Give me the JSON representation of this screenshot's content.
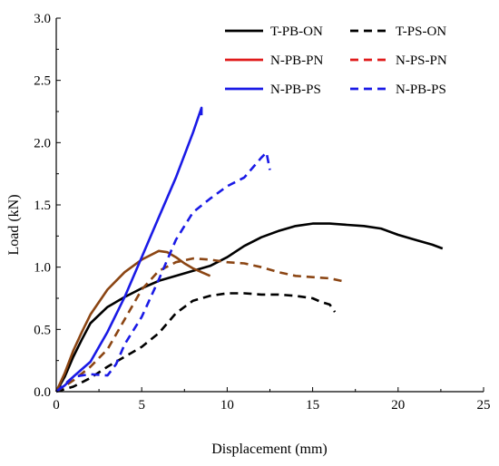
{
  "chart_data": {
    "type": "line",
    "title": "",
    "xlabel": "Displacement (mm)",
    "ylabel": "Load (kN)",
    "xlim": [
      0,
      25
    ],
    "ylim": [
      0,
      3.0
    ],
    "x_ticks": [
      "0",
      "5",
      "10",
      "15",
      "20",
      "25"
    ],
    "y_ticks": [
      "0.0",
      "0.5",
      "1.0",
      "1.5",
      "2.0",
      "2.5",
      "3.0"
    ],
    "grid": false,
    "legend_position": "top-right",
    "series": [
      {
        "name": "T-PB-ON",
        "color": "#000000",
        "dash": "solid",
        "points": [
          [
            0,
            0
          ],
          [
            0.5,
            0.12
          ],
          [
            1,
            0.28
          ],
          [
            1.5,
            0.42
          ],
          [
            2,
            0.55
          ],
          [
            3,
            0.68
          ],
          [
            4,
            0.76
          ],
          [
            5,
            0.83
          ],
          [
            6,
            0.89
          ],
          [
            7,
            0.93
          ],
          [
            8,
            0.97
          ],
          [
            9,
            1.01
          ],
          [
            10,
            1.08
          ],
          [
            11,
            1.17
          ],
          [
            12,
            1.24
          ],
          [
            13,
            1.29
          ],
          [
            14,
            1.33
          ],
          [
            15,
            1.35
          ],
          [
            16,
            1.35
          ],
          [
            17,
            1.34
          ],
          [
            18,
            1.33
          ],
          [
            19,
            1.31
          ],
          [
            20,
            1.26
          ],
          [
            21,
            1.22
          ],
          [
            22,
            1.18
          ],
          [
            22.6,
            1.15
          ]
        ]
      },
      {
        "name": "T-PS-ON",
        "color": "#000000",
        "dash": "dashed",
        "points": [
          [
            0,
            0
          ],
          [
            1,
            0.04
          ],
          [
            2,
            0.11
          ],
          [
            3,
            0.2
          ],
          [
            4,
            0.28
          ],
          [
            5,
            0.36
          ],
          [
            6,
            0.47
          ],
          [
            7,
            0.63
          ],
          [
            8,
            0.73
          ],
          [
            9,
            0.77
          ],
          [
            10,
            0.79
          ],
          [
            11,
            0.79
          ],
          [
            12,
            0.78
          ],
          [
            13,
            0.78
          ],
          [
            14,
            0.77
          ],
          [
            15,
            0.75
          ],
          [
            15.5,
            0.72
          ],
          [
            16,
            0.7
          ],
          [
            16.3,
            0.64
          ]
        ]
      },
      {
        "name": "N-PB-PN",
        "color": "#8B4513",
        "dash": "solid",
        "points": [
          [
            0,
            0
          ],
          [
            0.5,
            0.15
          ],
          [
            1,
            0.33
          ],
          [
            1.5,
            0.48
          ],
          [
            2,
            0.62
          ],
          [
            3,
            0.82
          ],
          [
            4,
            0.96
          ],
          [
            5,
            1.06
          ],
          [
            6,
            1.13
          ],
          [
            6.5,
            1.12
          ],
          [
            7,
            1.08
          ],
          [
            7.5,
            1.03
          ],
          [
            8,
            0.99
          ],
          [
            8.5,
            0.96
          ],
          [
            9,
            0.93
          ]
        ]
      },
      {
        "name": "N-PS-PN",
        "color": "#8B4513",
        "dash": "dashed",
        "points": [
          [
            0,
            0
          ],
          [
            1,
            0.09
          ],
          [
            2,
            0.2
          ],
          [
            3,
            0.34
          ],
          [
            4,
            0.58
          ],
          [
            5,
            0.82
          ],
          [
            6,
            0.97
          ],
          [
            7,
            1.04
          ],
          [
            8,
            1.07
          ],
          [
            9,
            1.06
          ],
          [
            10,
            1.04
          ],
          [
            11,
            1.03
          ],
          [
            12,
            1.0
          ],
          [
            13,
            0.96
          ],
          [
            14,
            0.93
          ],
          [
            15,
            0.92
          ],
          [
            16,
            0.91
          ],
          [
            17,
            0.88
          ]
        ]
      },
      {
        "name": "N-PB-PS",
        "color": "#1a1ae6",
        "dash": "solid",
        "points": [
          [
            0,
            0
          ],
          [
            0.5,
            0.05
          ],
          [
            1,
            0.12
          ],
          [
            2,
            0.24
          ],
          [
            3,
            0.48
          ],
          [
            4,
            0.76
          ],
          [
            5,
            1.08
          ],
          [
            6,
            1.4
          ],
          [
            7,
            1.72
          ],
          [
            8,
            2.08
          ],
          [
            8.5,
            2.28
          ],
          [
            8.5,
            2.22
          ]
        ]
      },
      {
        "name": "N-PB-PS",
        "color": "#1a1ae6",
        "dash": "dashed",
        "points": [
          [
            0,
            0
          ],
          [
            1,
            0.12
          ],
          [
            2,
            0.14
          ],
          [
            3,
            0.13
          ],
          [
            3.5,
            0.22
          ],
          [
            4,
            0.38
          ],
          [
            5,
            0.6
          ],
          [
            6,
            0.9
          ],
          [
            7,
            1.22
          ],
          [
            8,
            1.44
          ],
          [
            9,
            1.55
          ],
          [
            10,
            1.65
          ],
          [
            11,
            1.72
          ],
          [
            12,
            1.88
          ],
          [
            12.3,
            1.92
          ],
          [
            12.5,
            1.78
          ]
        ]
      }
    ]
  }
}
